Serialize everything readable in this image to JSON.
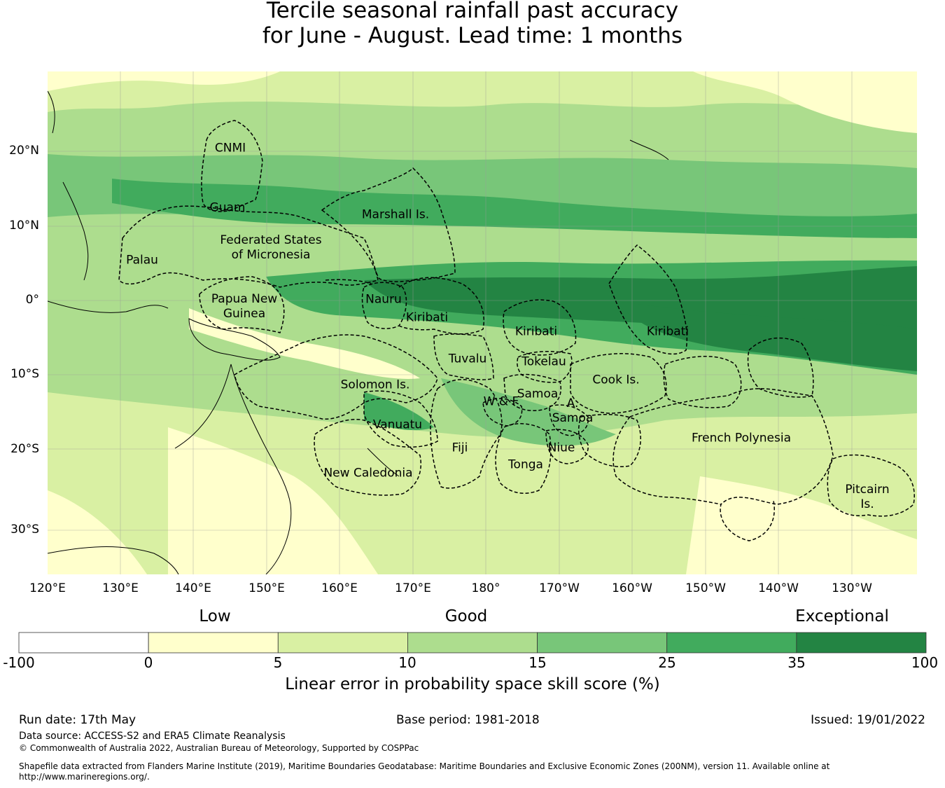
{
  "title_line1": "Tercile seasonal rainfall past accuracy",
  "title_line2": "for June - August. Lead time: 1 months",
  "map": {
    "lat_ticks": [
      "20°N",
      "10°N",
      "0°",
      "10°S",
      "20°S",
      "30°S"
    ],
    "lon_ticks": [
      "120°E",
      "130°E",
      "140°E",
      "150°E",
      "160°E",
      "170°E",
      "180°",
      "170°W",
      "160°W",
      "150°W",
      "140°W",
      "130°W"
    ],
    "regions": [
      {
        "label": "CNMI"
      },
      {
        "label": "Guam"
      },
      {
        "label": "Marshall Is."
      },
      {
        "label": "Palau"
      },
      {
        "label": "Federated States\nof Micronesia"
      },
      {
        "label": "Papua New\nGuinea"
      },
      {
        "label": "Nauru"
      },
      {
        "label": "Kiribati"
      },
      {
        "label": "Kiribati"
      },
      {
        "label": "Kiribati"
      },
      {
        "label": "Tuvalu"
      },
      {
        "label": "Tokelau"
      },
      {
        "label": "Cook Is."
      },
      {
        "label": "Solomon Is."
      },
      {
        "label": "Samoa"
      },
      {
        "label": "W & F"
      },
      {
        "label": "A.\nSamoa"
      },
      {
        "label": "Vanuatu"
      },
      {
        "label": "Fiji"
      },
      {
        "label": "Niue"
      },
      {
        "label": "Tonga"
      },
      {
        "label": "New Caledonia"
      },
      {
        "label": "French Polynesia"
      },
      {
        "label": "Pitcairn\nIs."
      }
    ],
    "colors": {
      "c_neg": "#ffffff",
      "c0": "#ffffcc",
      "c5": "#d9f0a3",
      "c10": "#addd8e",
      "c15": "#78c679",
      "c25": "#41ab5d",
      "c35": "#238443"
    }
  },
  "colorbar": {
    "words": {
      "low": "Low",
      "good": "Good",
      "exceptional": "Exceptional"
    },
    "ticks": [
      "-100",
      "0",
      "5",
      "10",
      "15",
      "25",
      "35",
      "100"
    ],
    "colors": [
      "#ffffff",
      "#ffffcc",
      "#d9f0a3",
      "#addd8e",
      "#78c679",
      "#41ab5d",
      "#238443"
    ],
    "label": "Linear error in probability space skill score (%)"
  },
  "footer": {
    "run_date": "Run date: 17th May",
    "base_period": "Base period: 1981-2018",
    "issued": "Issued: 19/01/2022",
    "data_source": "Data source: ACCESS-S2 and ERA5 Climate Reanalysis",
    "copyright": "© Commonwealth of Australia 2022, Australian Bureau of Meteorology, Supported by COSPPac",
    "shapefile": "Shapefile data extracted from Flanders Marine Institute (2019), Maritime Boundaries Geodatabase: Maritime Boundaries and Exclusive Economic Zones (200NM), version 11. Available online at http://www.marineregions.org/."
  }
}
